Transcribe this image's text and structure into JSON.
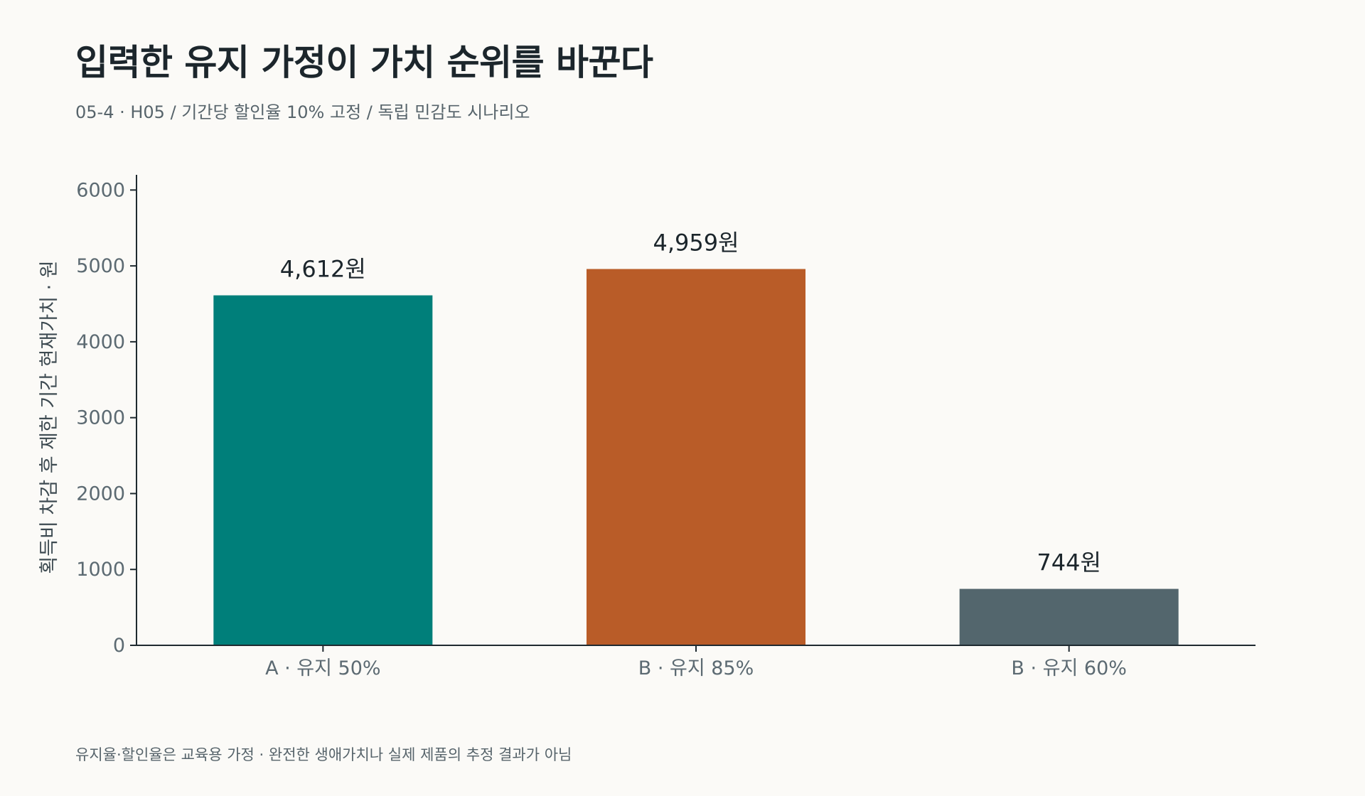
{
  "title": "입력한 유지 가정이 가치 순위를 바꾼다",
  "subtitle": "05-4 · H05 / 기간당 할인율 10% 고정 / 독립 민감도 시나리오",
  "footnote": "유지율·할인율은 교육용 가정 · 완전한 생애가치나 실제 제품의 추정 결과가 아님",
  "chart_data": {
    "type": "bar",
    "categories": [
      "A · 유지 50%",
      "B · 유지 85%",
      "B · 유지 60%"
    ],
    "values": [
      4612,
      4959,
      744
    ],
    "value_labels": [
      "4,612원",
      "4,959원",
      "744원"
    ],
    "colors": [
      "#007f7a",
      "#b95c28",
      "#53666d"
    ],
    "ylabel": "획득비 차감 후 제한 기간 현재가치 · 원",
    "xlabel": "",
    "ylim": [
      0,
      6200
    ],
    "yticks": [
      0,
      1000,
      2000,
      3000,
      4000,
      5000,
      6000
    ],
    "grid": false,
    "legend": "none"
  }
}
